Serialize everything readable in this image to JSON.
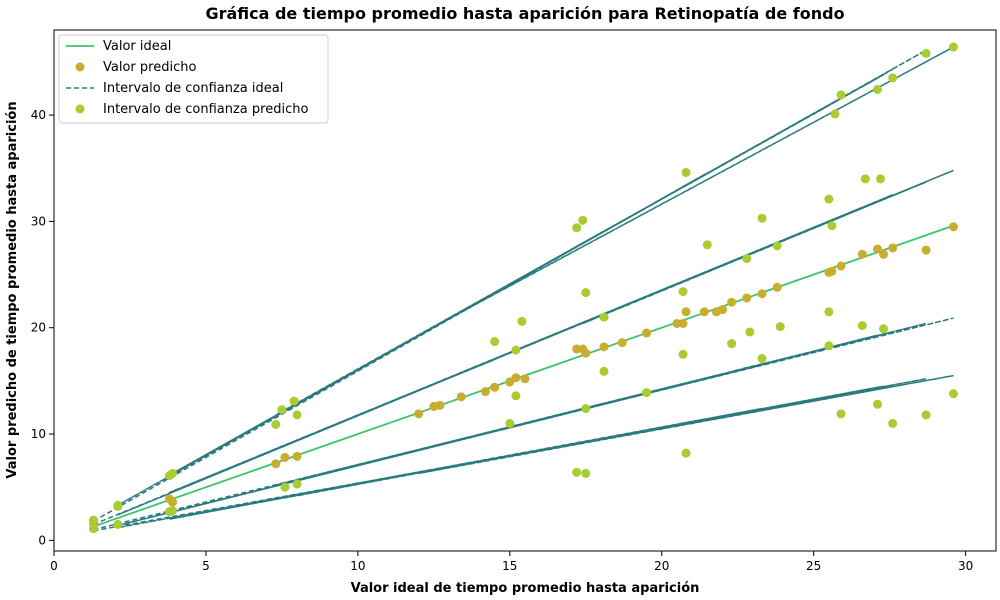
{
  "chart_data": {
    "type": "scatter",
    "title": "Gráfica de tiempo promedio hasta aparición para Retinopatía de fondo",
    "xlabel": "Valor ideal de tiempo promedio hasta aparición",
    "ylabel": "Valor predicho de tiempo promedio hasta aparición",
    "xlim": [
      0,
      31
    ],
    "ylim": [
      -1,
      48
    ],
    "xticks": [
      0,
      5,
      10,
      15,
      20,
      25,
      30
    ],
    "yticks": [
      0,
      10,
      20,
      30,
      40
    ],
    "grid": false,
    "legend_position": "top-left",
    "colors": {
      "ideal": "#3cc46a",
      "predicted": "#c8ae2e",
      "ci_ideal": "#2a7a7e",
      "ci_predicted": "#a8cc32"
    },
    "legend": [
      {
        "label": "Valor ideal",
        "kind": "line"
      },
      {
        "label": "Valor predicho",
        "kind": "marker"
      },
      {
        "label": "Intervalo de confianza ideal",
        "kind": "dashed"
      },
      {
        "label": "Intervalo de confianza predicho",
        "kind": "marker"
      }
    ],
    "ideal_line": {
      "x": [
        1.3,
        29.6
      ],
      "y": [
        1.3,
        29.6
      ]
    },
    "predicted_points": [
      [
        1.3,
        1.6
      ],
      [
        2.1,
        3.2
      ],
      [
        3.8,
        3.9
      ],
      [
        3.9,
        3.6
      ],
      [
        7.3,
        7.2
      ],
      [
        7.6,
        7.8
      ],
      [
        8.0,
        7.9
      ],
      [
        12.0,
        11.9
      ],
      [
        12.5,
        12.6
      ],
      [
        12.7,
        12.7
      ],
      [
        13.4,
        13.5
      ],
      [
        14.2,
        14.0
      ],
      [
        14.5,
        14.4
      ],
      [
        15.0,
        14.9
      ],
      [
        15.2,
        15.3
      ],
      [
        15.5,
        15.2
      ],
      [
        17.2,
        18.0
      ],
      [
        17.4,
        18.0
      ],
      [
        17.5,
        17.6
      ],
      [
        18.1,
        18.2
      ],
      [
        18.7,
        18.6
      ],
      [
        19.5,
        19.5
      ],
      [
        20.5,
        20.4
      ],
      [
        20.7,
        20.4
      ],
      [
        20.8,
        21.5
      ],
      [
        21.4,
        21.5
      ],
      [
        21.8,
        21.5
      ],
      [
        22.0,
        21.7
      ],
      [
        22.3,
        22.4
      ],
      [
        22.8,
        22.8
      ],
      [
        23.3,
        23.2
      ],
      [
        23.8,
        23.8
      ],
      [
        25.5,
        25.2
      ],
      [
        25.6,
        25.3
      ],
      [
        25.9,
        25.8
      ],
      [
        26.6,
        26.9
      ],
      [
        27.1,
        27.4
      ],
      [
        27.3,
        26.9
      ],
      [
        27.6,
        27.5
      ],
      [
        28.7,
        27.3
      ],
      [
        29.6,
        29.5
      ]
    ],
    "ci_ideal_x": [
      1.3,
      2.1,
      3.8,
      3.9,
      7.3,
      7.6,
      8.0,
      12.0,
      12.5,
      12.7,
      13.4,
      14.2,
      14.5,
      15.0,
      15.2,
      15.5,
      17.2,
      17.4,
      17.5,
      18.1,
      18.7,
      19.5,
      20.5,
      20.7,
      20.8,
      21.4,
      21.8,
      22.0,
      22.3,
      22.8,
      23.3,
      23.8,
      25.5,
      25.6,
      25.9,
      26.6,
      27.1,
      27.3,
      27.6,
      28.7,
      29.6
    ],
    "ci_ideal_upper": [
      1.8,
      3.3,
      6.1,
      6.3,
      11.8,
      12.2,
      12.8,
      19.3,
      20.1,
      20.4,
      21.5,
      22.8,
      23.3,
      24.1,
      24.4,
      24.9,
      27.6,
      27.9,
      28.1,
      29.1,
      30.0,
      31.3,
      32.9,
      33.2,
      33.4,
      34.4,
      35.0,
      35.3,
      35.8,
      36.6,
      37.4,
      38.2,
      40.9,
      41.1,
      41.6,
      42.7,
      43.5,
      43.8,
      44.3,
      46.1,
      46.4
    ],
    "ci_ideal_mid_upper": [
      1.5,
      2.4,
      4.5,
      4.6,
      8.6,
      8.9,
      9.4,
      14.1,
      14.7,
      14.9,
      15.8,
      16.7,
      17.0,
      17.6,
      17.9,
      18.2,
      20.2,
      20.4,
      20.6,
      21.3,
      22.0,
      22.9,
      24.1,
      24.3,
      24.5,
      25.2,
      25.6,
      25.9,
      26.2,
      26.8,
      27.4,
      28.0,
      30.0,
      30.1,
      30.5,
      31.3,
      31.9,
      32.1,
      32.5,
      33.7,
      34.8
    ],
    "ci_ideal_lower": [
      1.0,
      1.4,
      2.6,
      2.7,
      5.2,
      5.4,
      5.6,
      8.5,
      8.9,
      9.0,
      9.5,
      10.1,
      10.3,
      10.6,
      10.8,
      11.0,
      12.2,
      12.4,
      12.4,
      12.9,
      13.3,
      13.9,
      14.6,
      14.7,
      14.8,
      15.2,
      15.5,
      15.6,
      15.9,
      16.2,
      16.5,
      16.9,
      18.1,
      18.2,
      18.4,
      18.9,
      19.3,
      19.4,
      19.6,
      20.4,
      20.9
    ],
    "ci_ideal_low": [
      0.9,
      1.2,
      2.0,
      2.1,
      3.9,
      4.0,
      4.2,
      6.3,
      6.6,
      6.7,
      7.1,
      7.5,
      7.7,
      7.9,
      8.0,
      8.2,
      9.1,
      9.2,
      9.3,
      9.6,
      9.9,
      10.3,
      10.9,
      11.0,
      11.0,
      11.4,
      11.6,
      11.7,
      11.8,
      12.1,
      12.4,
      12.6,
      13.5,
      13.6,
      13.7,
      14.1,
      14.4,
      14.5,
      14.6,
      15.2,
      15.5
    ],
    "ci_predicted_points": [
      [
        1.3,
        1.9
      ],
      [
        1.3,
        1.1
      ],
      [
        2.1,
        3.3
      ],
      [
        2.1,
        1.5
      ],
      [
        3.8,
        6.1
      ],
      [
        3.9,
        6.3
      ],
      [
        3.8,
        2.7
      ],
      [
        3.9,
        2.8
      ],
      [
        7.3,
        10.9
      ],
      [
        7.5,
        12.3
      ],
      [
        7.9,
        13.1
      ],
      [
        8.0,
        11.8
      ],
      [
        7.6,
        5.0
      ],
      [
        8.0,
        5.3
      ],
      [
        14.5,
        18.7
      ],
      [
        15.2,
        17.9
      ],
      [
        15.2,
        13.6
      ],
      [
        15.4,
        20.6
      ],
      [
        15.0,
        11.0
      ],
      [
        17.2,
        29.4
      ],
      [
        17.4,
        30.1
      ],
      [
        17.5,
        23.3
      ],
      [
        17.2,
        6.4
      ],
      [
        17.5,
        6.3
      ],
      [
        17.5,
        12.4
      ],
      [
        18.1,
        21.0
      ],
      [
        18.1,
        15.9
      ],
      [
        19.5,
        13.9
      ],
      [
        20.7,
        23.4
      ],
      [
        20.8,
        34.6
      ],
      [
        20.8,
        8.2
      ],
      [
        20.7,
        17.5
      ],
      [
        21.5,
        27.8
      ],
      [
        22.3,
        18.5
      ],
      [
        22.8,
        26.5
      ],
      [
        22.9,
        19.6
      ],
      [
        23.3,
        30.3
      ],
      [
        23.3,
        17.1
      ],
      [
        23.8,
        27.7
      ],
      [
        23.9,
        20.1
      ],
      [
        25.5,
        21.5
      ],
      [
        25.5,
        18.3
      ],
      [
        25.5,
        32.1
      ],
      [
        25.6,
        29.6
      ],
      [
        25.9,
        41.9
      ],
      [
        25.9,
        11.9
      ],
      [
        25.7,
        40.1
      ],
      [
        26.6,
        20.2
      ],
      [
        26.7,
        34.0
      ],
      [
        27.1,
        42.4
      ],
      [
        27.2,
        34.0
      ],
      [
        27.3,
        19.9
      ],
      [
        27.1,
        12.8
      ],
      [
        27.6,
        43.5
      ],
      [
        27.6,
        11.0
      ],
      [
        28.7,
        45.8
      ],
      [
        28.7,
        11.8
      ],
      [
        29.6,
        46.4
      ],
      [
        29.6,
        13.8
      ]
    ]
  }
}
